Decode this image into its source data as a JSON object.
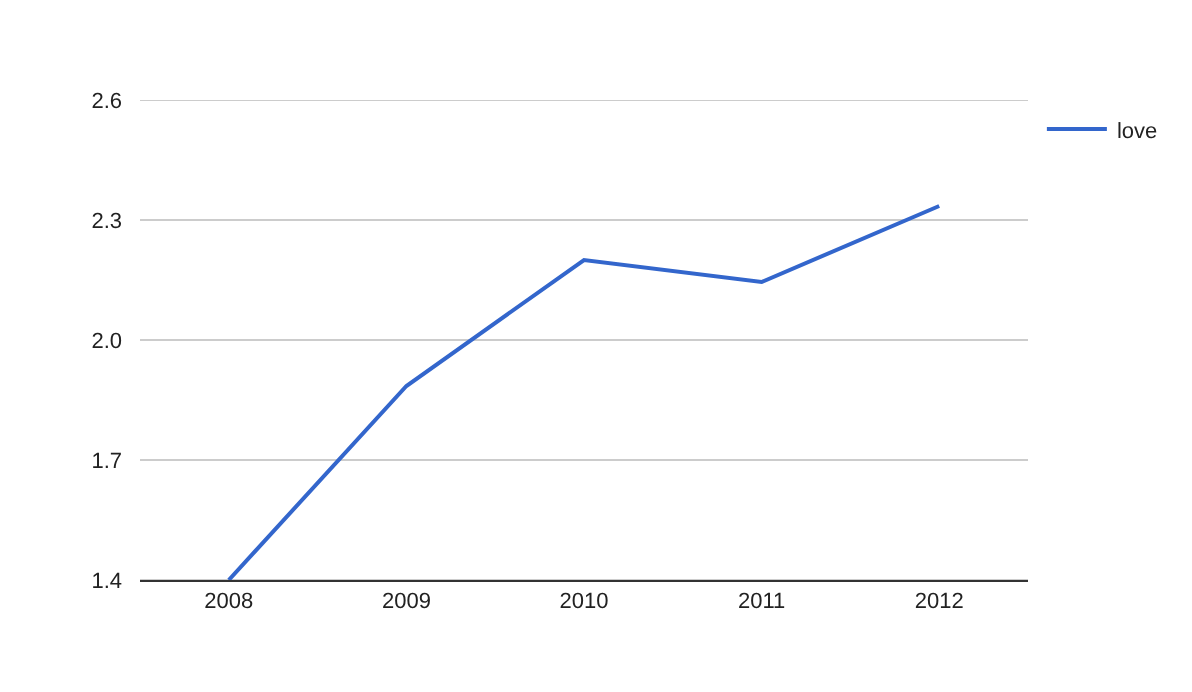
{
  "chart_data": {
    "type": "line",
    "categories": [
      "2008",
      "2009",
      "2010",
      "2011",
      "2012"
    ],
    "series": [
      {
        "name": "love",
        "color": "#3366cc",
        "values": [
          1.4,
          1.885,
          2.2,
          2.145,
          2.335
        ]
      }
    ],
    "ylim": [
      1.4,
      2.6
    ],
    "yticks": [
      {
        "value": 1.4,
        "label": "1.4"
      },
      {
        "value": 1.7,
        "label": "1.7"
      },
      {
        "value": 2.0,
        "label": "2.0"
      },
      {
        "value": 2.3,
        "label": "2.3"
      },
      {
        "value": 2.6,
        "label": "2.6"
      }
    ],
    "grid": "y",
    "legend": "top right",
    "marker": "none",
    "line_style": "solid"
  }
}
